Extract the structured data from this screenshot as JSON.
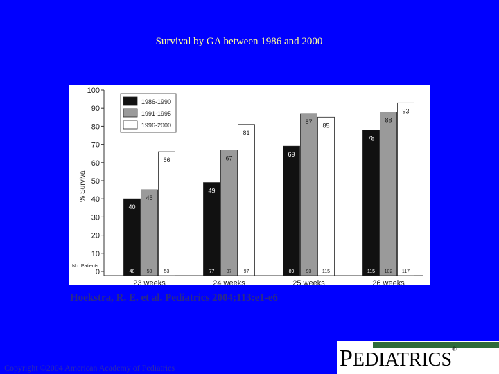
{
  "slide": {
    "title": "Survival by GA between 1986 and 2000",
    "citation": "Hoekstra, R. E. et al. Pediatrics 2004;113:e1-e6",
    "copyright": "Copyright ©2004 American Academy of Pediatrics"
  },
  "logo": {
    "text": "PEDIATRICS"
  },
  "colors": {
    "background": "#0000ff",
    "title": "#ffff99",
    "series": [
      "#111111",
      "#9a9a9a",
      "#ffffff"
    ]
  },
  "chart_data": {
    "type": "bar",
    "title": "",
    "ylabel": "% Survival",
    "xlabel": "",
    "ylim": [
      0,
      100
    ],
    "yticks": [
      0,
      10,
      20,
      30,
      40,
      50,
      60,
      70,
      80,
      90,
      100
    ],
    "grid": false,
    "legend_position": "top-left",
    "categories": [
      "23 weeks",
      "24 weeks",
      "25 weeks",
      "26 weeks"
    ],
    "series": [
      {
        "name": "1986-1990",
        "values": [
          40,
          49,
          69,
          78
        ],
        "patients": [
          48,
          77,
          89,
          115
        ]
      },
      {
        "name": "1991-1995",
        "values": [
          45,
          67,
          87,
          88
        ],
        "patients": [
          50,
          87,
          93,
          102
        ]
      },
      {
        "name": "1996-2000",
        "values": [
          66,
          81,
          85,
          93
        ],
        "patients": [
          53,
          97,
          115,
          117
        ]
      }
    ],
    "patients_label": "No. Patients"
  }
}
